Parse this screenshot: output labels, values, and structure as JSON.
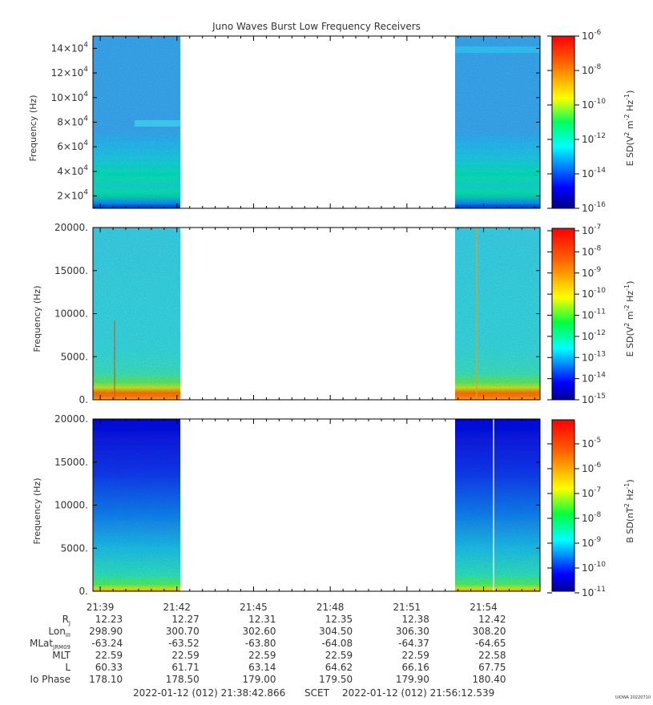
{
  "title": "Juno Waves Burst Low Frequency Receivers",
  "chart_data": {
    "type": "heatmap",
    "panels": [
      {
        "id": "panel1",
        "ylabel": "Frequency (Hz)",
        "yticks": [
          {
            "value": 20000,
            "label": "2×10",
            "exp": "4"
          },
          {
            "value": 40000,
            "label": "4×10",
            "exp": "4"
          },
          {
            "value": 60000,
            "label": "6×10",
            "exp": "4"
          },
          {
            "value": 80000,
            "label": "8×10",
            "exp": "4"
          },
          {
            "value": 100000,
            "label": "10×10",
            "exp": "4"
          },
          {
            "value": 120000,
            "label": "12×10",
            "exp": "4"
          },
          {
            "value": 140000,
            "label": "14×10",
            "exp": "4"
          }
        ],
        "ylim": [
          10000,
          150000
        ],
        "data_spans": [
          [
            "21:38:42",
            "21:42:00"
          ],
          [
            "21:53:20",
            "21:56:12"
          ]
        ],
        "colorbar": {
          "label": "E SD(V",
          "ticks": [
            {
              "base": "10",
              "exp": "-6"
            },
            {
              "base": "10",
              "exp": "-8"
            },
            {
              "base": "10",
              "exp": "-10"
            },
            {
              "base": "10",
              "exp": "-12"
            },
            {
              "base": "10",
              "exp": "-14"
            },
            {
              "base": "10",
              "exp": "-16"
            }
          ]
        }
      },
      {
        "id": "panel2",
        "ylabel": "Frequency (Hz)",
        "yticks": [
          {
            "value": 0,
            "label": "0."
          },
          {
            "value": 5000,
            "label": "5000."
          },
          {
            "value": 10000,
            "label": "10000."
          },
          {
            "value": 15000,
            "label": "15000."
          },
          {
            "value": 20000,
            "label": "20000."
          }
        ],
        "ylim": [
          0,
          20000
        ],
        "data_spans": [
          [
            "21:38:42",
            "21:42:00"
          ],
          [
            "21:53:20",
            "21:56:12"
          ]
        ],
        "colorbar": {
          "label": "E SD(V",
          "ticks": [
            {
              "base": "10",
              "exp": "-7"
            },
            {
              "base": "10",
              "exp": "-8"
            },
            {
              "base": "10",
              "exp": "-9"
            },
            {
              "base": "10",
              "exp": "-10"
            },
            {
              "base": "10",
              "exp": "-11"
            },
            {
              "base": "10",
              "exp": "-12"
            },
            {
              "base": "10",
              "exp": "-13"
            },
            {
              "base": "10",
              "exp": "-14"
            },
            {
              "base": "10",
              "exp": "-15"
            }
          ]
        }
      },
      {
        "id": "panel3",
        "ylabel": "Frequency (Hz)",
        "yticks": [
          {
            "value": 0,
            "label": "0."
          },
          {
            "value": 5000,
            "label": "5000."
          },
          {
            "value": 10000,
            "label": "10000."
          },
          {
            "value": 15000,
            "label": "15000."
          },
          {
            "value": 20000,
            "label": "20000."
          }
        ],
        "ylim": [
          0,
          20000
        ],
        "data_spans": [
          [
            "21:38:42",
            "21:42:00"
          ],
          [
            "21:53:20",
            "21:56:12"
          ]
        ],
        "colorbar": {
          "label": "B SD(nT",
          "ticks": [
            {
              "base": "10",
              "exp": "-5"
            },
            {
              "base": "10",
              "exp": "-6"
            },
            {
              "base": "10",
              "exp": "-7"
            },
            {
              "base": "10",
              "exp": "-8"
            },
            {
              "base": "10",
              "exp": "-9"
            },
            {
              "base": "10",
              "exp": "-10"
            },
            {
              "base": "10",
              "exp": "-11"
            }
          ]
        }
      }
    ],
    "x_ticks": [
      "21:39",
      "21:42",
      "21:45",
      "21:48",
      "21:51",
      "21:54"
    ],
    "ephemeris": [
      {
        "label": "R",
        "sub": "J",
        "values": [
          "12.23",
          "12.27",
          "12.31",
          "12.35",
          "12.38",
          "12.42"
        ]
      },
      {
        "label": "Lon",
        "sub": "III",
        "values": [
          "298.90",
          "300.70",
          "302.60",
          "304.50",
          "306.30",
          "308.20"
        ]
      },
      {
        "label": "MLat",
        "sub": "JRM09",
        "values": [
          "-63.24",
          "-63.52",
          "-63.80",
          "-64.08",
          "-64.37",
          "-64.65"
        ]
      },
      {
        "label": "MLT",
        "sub": "",
        "values": [
          "22.59",
          "22.59",
          "22.59",
          "22.59",
          "22.59",
          "22.58"
        ]
      },
      {
        "label": "L",
        "sub": "",
        "values": [
          "60.33",
          "61.71",
          "63.14",
          "64.62",
          "66.16",
          "67.75"
        ]
      },
      {
        "label": "Io Phase",
        "sub": "",
        "values": [
          "178.10",
          "178.50",
          "179.00",
          "179.50",
          "179.90",
          "180.40"
        ]
      }
    ]
  },
  "footer": {
    "start": "2022-01-12 (012) 21:38:42.866",
    "scet": "SCET",
    "end": "2022-01-12 (012) 21:56:12.539",
    "credit": "UIOWA 20220710"
  },
  "colors": {
    "jet": [
      "#00007f",
      "#0000ff",
      "#007fff",
      "#00ffff",
      "#7fff7f",
      "#ffff00",
      "#ff7f00",
      "#ff0000",
      "#7f0000"
    ]
  }
}
